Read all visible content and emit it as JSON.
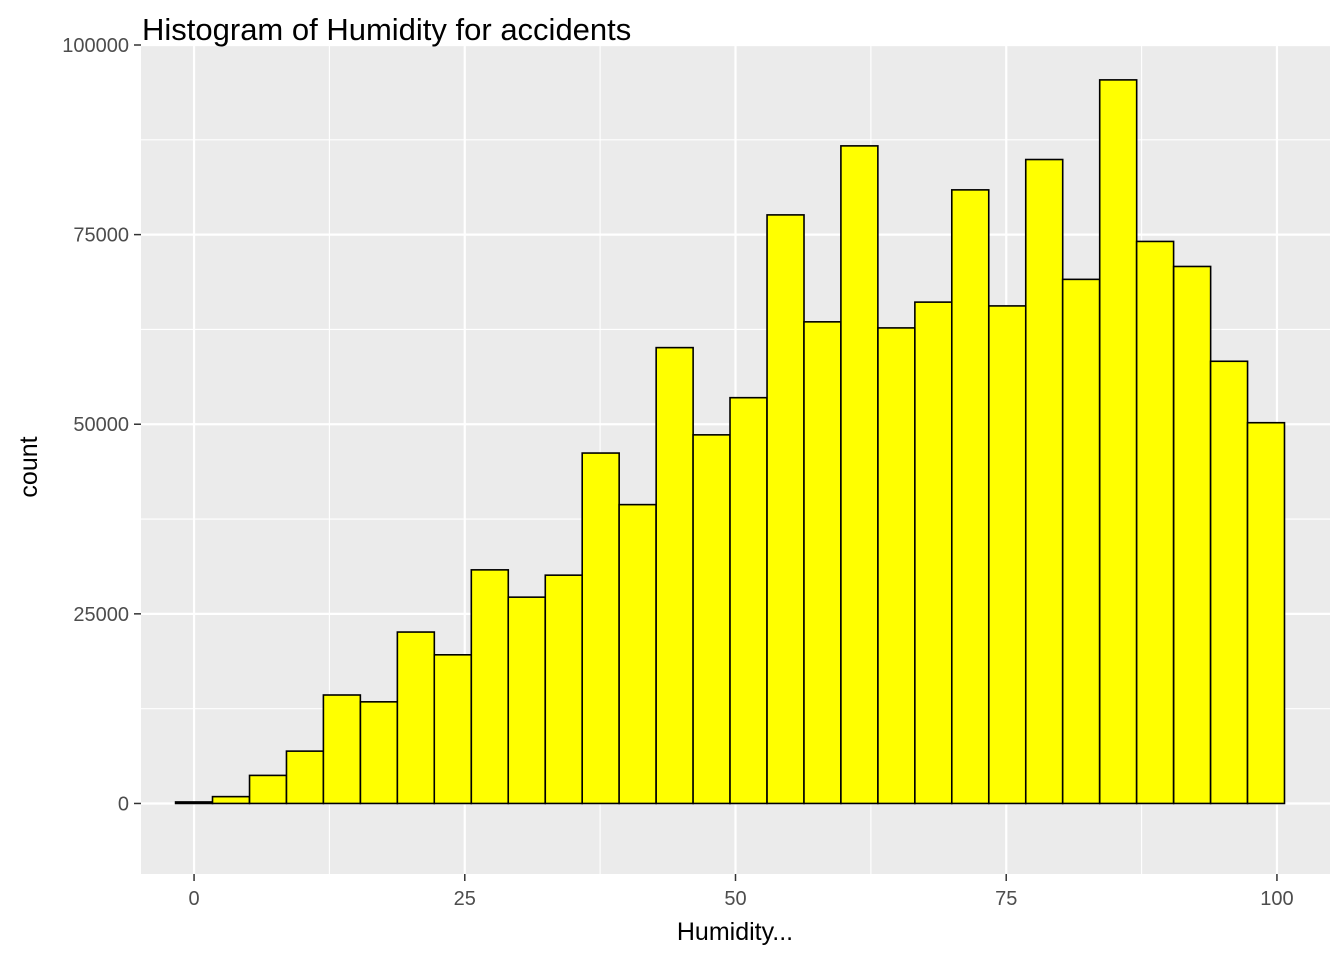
{
  "chart_data": {
    "type": "bar",
    "title": "Histogram of Humidity for accidents",
    "xlabel": "Humidity...",
    "ylabel": "count",
    "xlim": [
      -4.9,
      104.9
    ],
    "ylim": [
      -9300,
      100000
    ],
    "x_ticks": [
      0,
      25,
      50,
      75,
      100
    ],
    "x_tick_labels": [
      "0",
      "25",
      "50",
      "75",
      "100"
    ],
    "y_ticks": [
      0,
      25000,
      50000,
      75000,
      100000
    ],
    "y_tick_labels": [
      "0",
      "25000",
      "50000",
      "75000",
      "100000"
    ],
    "grid": true,
    "bin_width": 3.4135,
    "bin_centers": [
      0.0,
      3.41,
      6.83,
      10.24,
      13.65,
      17.07,
      20.48,
      23.89,
      27.31,
      30.72,
      34.14,
      37.55,
      40.96,
      44.38,
      47.79,
      51.2,
      54.62,
      58.03,
      61.44,
      64.86,
      68.27,
      71.68,
      75.1,
      78.51,
      81.92,
      85.34,
      88.75,
      92.17,
      95.58,
      98.99
    ],
    "values": [
      200,
      900,
      3700,
      6900,
      14300,
      13400,
      22600,
      19600,
      30800,
      27200,
      30100,
      46200,
      39400,
      60100,
      48600,
      53500,
      77600,
      63500,
      86700,
      62700,
      66100,
      80900,
      65600,
      84900,
      69100,
      95400,
      74100,
      70800,
      58300,
      50200
    ],
    "colors": {
      "bar_fill": "#ffff00",
      "bar_stroke": "#000000",
      "panel": "#ebebeb",
      "grid": "#ffffff"
    }
  }
}
